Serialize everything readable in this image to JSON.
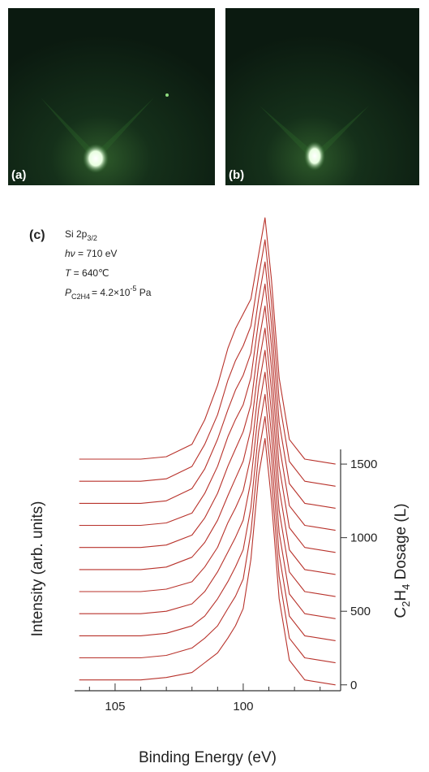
{
  "panels": {
    "a": "(a)",
    "b": "(b)"
  },
  "chart_data": {
    "type": "waterfall",
    "panel_label": "(c)",
    "annotations": [
      [
        "Si 2p",
        "3/2"
      ],
      [
        "hν",
        " = 710 eV"
      ],
      [
        "T",
        " = 640℃"
      ],
      [
        "P",
        "C2H4",
        "= 4.2×10",
        "-5",
        " Pa"
      ]
    ],
    "x_label": "Binding Energy (eV)",
    "y_label": "Intensity (arb. units)",
    "y2_label": [
      "C",
      "2",
      "H",
      "4",
      " Dosage (L)"
    ],
    "xlim": [
      106.58,
      96.2
    ],
    "xticks": [
      105,
      100
    ],
    "xminorticks": [
      106,
      104,
      103,
      102,
      101,
      99,
      98,
      97
    ],
    "ylim": [
      0,
      1.93
    ],
    "y2lim": [
      -40,
      3190
    ],
    "y2ticks": [
      0,
      500,
      1000,
      1500
    ],
    "color": "#b8322b",
    "x": [
      106.4,
      105,
      104,
      103,
      102,
      101.5,
      101,
      100.6,
      100.3,
      100.0,
      99.7,
      99.4,
      99.15,
      98.9,
      98.6,
      98.2,
      97.6,
      96.4
    ],
    "dosages": [
      0,
      150,
      300,
      450,
      600,
      750,
      900,
      1050,
      1200,
      1350,
      1500
    ],
    "series": [
      {
        "values": [
          0.02,
          0.02,
          0.02,
          0.03,
          0.05,
          0.09,
          0.13,
          0.19,
          0.24,
          0.31,
          0.51,
          0.85,
          1,
          0.75,
          0.35,
          0.1,
          0.02,
          0
        ]
      },
      {
        "values": [
          0.02,
          0.02,
          0.02,
          0.03,
          0.06,
          0.1,
          0.15,
          0.22,
          0.27,
          0.34,
          0.53,
          0.85,
          1,
          0.75,
          0.35,
          0.1,
          0.02,
          0
        ]
      },
      {
        "values": [
          0.02,
          0.02,
          0.02,
          0.03,
          0.06,
          0.1,
          0.17,
          0.24,
          0.3,
          0.37,
          0.54,
          0.85,
          1,
          0.75,
          0.35,
          0.1,
          0.02,
          0
        ]
      },
      {
        "values": [
          0.02,
          0.02,
          0.02,
          0.03,
          0.06,
          0.11,
          0.19,
          0.27,
          0.33,
          0.4,
          0.56,
          0.85,
          1,
          0.75,
          0.35,
          0.1,
          0.02,
          0
        ]
      },
      {
        "values": [
          0.02,
          0.02,
          0.02,
          0.03,
          0.06,
          0.12,
          0.2,
          0.3,
          0.36,
          0.43,
          0.57,
          0.85,
          1,
          0.75,
          0.35,
          0.1,
          0.02,
          0
        ]
      },
      {
        "values": [
          0.02,
          0.02,
          0.02,
          0.03,
          0.07,
          0.13,
          0.22,
          0.32,
          0.39,
          0.46,
          0.59,
          0.85,
          1,
          0.75,
          0.35,
          0.1,
          0.02,
          0
        ]
      },
      {
        "values": [
          0.02,
          0.02,
          0.02,
          0.03,
          0.07,
          0.14,
          0.24,
          0.35,
          0.42,
          0.49,
          0.6,
          0.85,
          1,
          0.75,
          0.35,
          0.1,
          0.02,
          0
        ]
      },
      {
        "values": [
          0.02,
          0.02,
          0.02,
          0.03,
          0.07,
          0.15,
          0.26,
          0.38,
          0.45,
          0.51,
          0.62,
          0.85,
          1,
          0.75,
          0.35,
          0.1,
          0.02,
          0
        ]
      },
      {
        "values": [
          0.02,
          0.02,
          0.02,
          0.03,
          0.08,
          0.16,
          0.28,
          0.4,
          0.48,
          0.54,
          0.63,
          0.85,
          1,
          0.75,
          0.35,
          0.1,
          0.02,
          0
        ]
      },
      {
        "values": [
          0.02,
          0.02,
          0.02,
          0.03,
          0.08,
          0.17,
          0.29,
          0.43,
          0.51,
          0.57,
          0.65,
          0.85,
          1,
          0.75,
          0.35,
          0.1,
          0.02,
          0
        ]
      },
      {
        "values": [
          0.02,
          0.02,
          0.02,
          0.03,
          0.08,
          0.18,
          0.32,
          0.47,
          0.55,
          0.61,
          0.67,
          0.85,
          1,
          0.75,
          0.35,
          0.1,
          0.02,
          0
        ]
      }
    ]
  }
}
